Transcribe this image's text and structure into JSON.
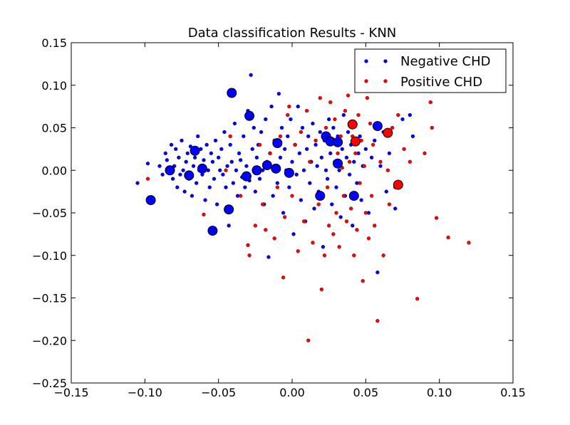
{
  "chart_data": {
    "type": "scatter",
    "title": "Data classification Results - KNN",
    "xlabel": "",
    "ylabel": "",
    "xlim": [
      -0.15,
      0.15
    ],
    "ylim": [
      -0.25,
      0.15
    ],
    "xticks": [
      -0.15,
      -0.1,
      -0.05,
      0.0,
      0.05,
      0.1,
      0.15
    ],
    "xtick_labels": [
      "−0.15",
      "−0.10",
      "−0.05",
      "0.00",
      "0.05",
      "0.10",
      "0.15"
    ],
    "yticks": [
      0.15,
      0.1,
      0.05,
      0.0,
      -0.05,
      -0.1,
      -0.15,
      -0.2,
      -0.25
    ],
    "ytick_labels": [
      "0.15",
      "0.10",
      "0.05",
      "0.00",
      "−0.05",
      "−0.10",
      "−0.15",
      "−0.20",
      "−0.25"
    ],
    "grid": false,
    "legend_position": "top-right",
    "series": [
      {
        "name": "Negative CHD",
        "color": "#0000ff",
        "marker": "small-dot",
        "points": [
          [
            -0.105,
            -0.015
          ],
          [
            -0.098,
            0.008
          ],
          [
            -0.095,
            -0.035
          ],
          [
            -0.09,
            0.005
          ],
          [
            -0.088,
            -0.005
          ],
          [
            -0.086,
            0.02
          ],
          [
            -0.085,
            0.012
          ],
          [
            -0.083,
            -0.002
          ],
          [
            -0.082,
            0.03
          ],
          [
            -0.081,
            -0.01
          ],
          [
            -0.08,
            0.005
          ],
          [
            -0.079,
            0.025
          ],
          [
            -0.078,
            -0.02
          ],
          [
            -0.077,
            0.015
          ],
          [
            -0.076,
            -0.005
          ],
          [
            -0.075,
            0.035
          ],
          [
            -0.074,
            0.0
          ],
          [
            -0.073,
            -0.025
          ],
          [
            -0.072,
            0.01
          ],
          [
            -0.071,
            0.02
          ],
          [
            -0.07,
            -0.01
          ],
          [
            -0.069,
            0.028
          ],
          [
            -0.068,
            -0.03
          ],
          [
            -0.067,
            0.005
          ],
          [
            -0.066,
            0.015
          ],
          [
            -0.065,
            -0.015
          ],
          [
            -0.064,
            0.04
          ],
          [
            -0.063,
            0.0
          ],
          [
            -0.062,
            0.025
          ],
          [
            -0.061,
            -0.005
          ],
          [
            -0.06,
            0.012
          ],
          [
            -0.059,
            -0.035
          ],
          [
            -0.058,
            0.03
          ],
          [
            -0.057,
            0.0
          ],
          [
            -0.056,
            -0.02
          ],
          [
            -0.055,
            0.02
          ],
          [
            -0.054,
            0.01
          ],
          [
            -0.053,
            -0.01
          ],
          [
            -0.052,
            0.035
          ],
          [
            -0.051,
            -0.04
          ],
          [
            -0.05,
            0.015
          ],
          [
            -0.049,
            0.0
          ],
          [
            -0.048,
            0.025
          ],
          [
            -0.047,
            -0.005
          ],
          [
            -0.046,
            0.045
          ],
          [
            -0.045,
            -0.02
          ],
          [
            -0.044,
            0.005
          ],
          [
            -0.043,
            -0.065
          ],
          [
            -0.042,
            0.03
          ],
          [
            -0.041,
            0.01
          ],
          [
            -0.04,
            -0.015
          ],
          [
            -0.039,
            0.055
          ],
          [
            -0.038,
            0.0
          ],
          [
            -0.037,
            -0.03
          ],
          [
            -0.036,
            0.02
          ],
          [
            -0.035,
            0.012
          ],
          [
            -0.034,
            -0.008
          ],
          [
            -0.033,
            0.04
          ],
          [
            -0.032,
            -0.02
          ],
          [
            -0.031,
            0.005
          ],
          [
            -0.03,
            0.07
          ],
          [
            -0.029,
            -0.012
          ],
          [
            -0.028,
            0.112
          ],
          [
            -0.027,
            0.025
          ],
          [
            -0.026,
            0.05
          ],
          [
            -0.025,
            -0.025
          ],
          [
            -0.024,
            0.015
          ],
          [
            -0.023,
            0.03
          ],
          [
            -0.022,
            -0.01
          ],
          [
            -0.021,
            0.045
          ],
          [
            -0.02,
            0.0
          ],
          [
            -0.019,
            -0.04
          ],
          [
            -0.018,
            0.06
          ],
          [
            -0.017,
            0.01
          ],
          [
            -0.016,
            -0.102
          ],
          [
            -0.015,
            0.02
          ],
          [
            -0.014,
            0.075
          ],
          [
            -0.013,
            -0.03
          ],
          [
            -0.012,
            0.035
          ],
          [
            -0.011,
            0.005
          ],
          [
            -0.01,
            -0.015
          ],
          [
            -0.009,
            0.09
          ],
          [
            -0.008,
            0.015
          ],
          [
            -0.007,
            0.05
          ],
          [
            -0.006,
            -0.05
          ],
          [
            -0.005,
            0.025
          ],
          [
            -0.004,
            0.0
          ],
          [
            -0.003,
            0.04
          ],
          [
            -0.002,
            -0.02
          ],
          [
            -0.001,
            0.06
          ],
          [
            0.0,
            0.01
          ],
          [
            0.001,
            -0.075
          ],
          [
            0.002,
            0.03
          ],
          [
            0.003,
            -0.005
          ],
          [
            0.004,
            0.075
          ],
          [
            0.005,
            0.02
          ],
          [
            0.006,
            -0.035
          ],
          [
            0.007,
            0.05
          ],
          [
            0.008,
            0.0
          ],
          [
            0.009,
            -0.06
          ],
          [
            0.01,
            0.025
          ],
          [
            0.011,
            0.04
          ],
          [
            0.012,
            -0.015
          ],
          [
            0.013,
            0.01
          ],
          [
            0.014,
            0.055
          ],
          [
            0.015,
            -0.045
          ],
          [
            0.016,
            0.03
          ],
          [
            0.017,
            0.005
          ],
          [
            0.018,
            -0.025
          ],
          [
            0.019,
            0.045
          ],
          [
            0.02,
            0.015
          ],
          [
            0.021,
            -0.09
          ],
          [
            0.022,
            0.035
          ],
          [
            0.023,
            0.0
          ],
          [
            0.024,
            -0.01
          ],
          [
            0.025,
            0.06
          ],
          [
            0.026,
            0.02
          ],
          [
            0.027,
            -0.04
          ],
          [
            0.028,
            0.05
          ],
          [
            0.029,
            0.01
          ],
          [
            0.03,
            -0.02
          ],
          [
            0.031,
            0.04
          ],
          [
            0.032,
            0.0
          ],
          [
            0.033,
            -0.055
          ],
          [
            0.034,
            0.025
          ],
          [
            0.035,
            0.065
          ],
          [
            0.036,
            -0.03
          ],
          [
            0.037,
            0.015
          ],
          [
            0.038,
            0.045
          ],
          [
            0.039,
            -0.005
          ],
          [
            0.04,
            0.03
          ],
          [
            0.041,
            -0.065
          ],
          [
            0.042,
            0.01
          ],
          [
            0.043,
            0.055
          ],
          [
            0.044,
            -0.015
          ],
          [
            0.045,
            0.02
          ],
          [
            0.046,
            0.04
          ],
          [
            0.047,
            -0.035
          ],
          [
            0.048,
            0.005
          ],
          [
            0.05,
            0.025
          ],
          [
            0.052,
            -0.05
          ],
          [
            0.054,
            0.015
          ],
          [
            0.056,
            0.035
          ],
          [
            0.058,
            -0.12
          ],
          [
            0.06,
            0.005
          ],
          [
            0.062,
            0.045
          ],
          [
            0.064,
            -0.025
          ],
          [
            0.066,
            0.02
          ],
          [
            0.07,
            -0.045
          ],
          [
            0.075,
            0.06
          ],
          [
            0.08,
            0.065
          ],
          [
            0.082,
            0.04
          ]
        ]
      },
      {
        "name": "Positive CHD",
        "color": "#ff0000",
        "marker": "small-dot",
        "points": [
          [
            -0.098,
            -0.01
          ],
          [
            -0.06,
            -0.052
          ],
          [
            -0.045,
            0.0
          ],
          [
            -0.042,
            0.04
          ],
          [
            -0.035,
            -0.03
          ],
          [
            -0.03,
            -0.088
          ],
          [
            -0.029,
            -0.1
          ],
          [
            -0.025,
            -0.065
          ],
          [
            -0.022,
            0.03
          ],
          [
            -0.02,
            -0.04
          ],
          [
            -0.018,
            -0.07
          ],
          [
            -0.015,
            0.02
          ],
          [
            -0.012,
            -0.08
          ],
          [
            -0.01,
            -0.02
          ],
          [
            -0.008,
            0.04
          ],
          [
            -0.006,
            -0.126
          ],
          [
            -0.005,
            -0.055
          ],
          [
            -0.003,
            0.065
          ],
          [
            -0.002,
            0.075
          ],
          [
            0.0,
            -0.03
          ],
          [
            0.002,
            0.03
          ],
          [
            0.004,
            -0.095
          ],
          [
            0.006,
            0.045
          ],
          [
            0.008,
            -0.06
          ],
          [
            0.01,
            0.07
          ],
          [
            0.011,
            -0.2
          ],
          [
            0.012,
            0.01
          ],
          [
            0.014,
            -0.085
          ],
          [
            0.016,
            0.035
          ],
          [
            0.018,
            -0.04
          ],
          [
            0.019,
            0.085
          ],
          [
            0.02,
            -0.14
          ],
          [
            0.022,
            -0.1
          ],
          [
            0.023,
            0.05
          ],
          [
            0.024,
            -0.02
          ],
          [
            0.025,
            -0.065
          ],
          [
            0.026,
            0.08
          ],
          [
            0.028,
            -0.075
          ],
          [
            0.029,
            0.06
          ],
          [
            0.03,
            -0.05
          ],
          [
            0.031,
            0.02
          ],
          [
            0.032,
            -0.09
          ],
          [
            0.033,
            0.04
          ],
          [
            0.034,
            0.003
          ],
          [
            0.035,
            -0.03
          ],
          [
            0.036,
            0.07
          ],
          [
            0.037,
            -0.06
          ],
          [
            0.038,
            0.088
          ],
          [
            0.039,
            0.01
          ],
          [
            0.04,
            -0.045
          ],
          [
            0.041,
            0.04
          ],
          [
            0.042,
            -0.1
          ],
          [
            0.043,
            0.02
          ],
          [
            0.044,
            -0.07
          ],
          [
            0.045,
            0.065
          ],
          [
            0.046,
            -0.015
          ],
          [
            0.047,
            0.035
          ],
          [
            0.048,
            -0.13
          ],
          [
            0.049,
            0.005
          ],
          [
            0.05,
            -0.05
          ],
          [
            0.051,
            0.085
          ],
          [
            0.052,
            -0.08
          ],
          [
            0.053,
            0.055
          ],
          [
            0.054,
            -0.03
          ],
          [
            0.055,
            0.03
          ],
          [
            0.056,
            -0.065
          ],
          [
            0.058,
            -0.177
          ],
          [
            0.06,
            0.01
          ],
          [
            0.062,
            -0.1
          ],
          [
            0.063,
            0.045
          ],
          [
            0.065,
            0.0
          ],
          [
            0.066,
            -0.04
          ],
          [
            0.068,
            0.05
          ],
          [
            0.07,
            -0.02
          ],
          [
            0.072,
            0.065
          ],
          [
            0.076,
            0.025
          ],
          [
            0.08,
            0.01
          ],
          [
            0.085,
            -0.151
          ],
          [
            0.09,
            0.02
          ],
          [
            0.094,
            0.08
          ],
          [
            0.095,
            0.05
          ],
          [
            0.098,
            -0.056
          ],
          [
            0.106,
            -0.079
          ],
          [
            0.12,
            -0.085
          ]
        ]
      }
    ],
    "highlighted_points": {
      "negative": {
        "color": "#0000ff",
        "marker": "large-circle",
        "points": [
          [
            -0.096,
            -0.035
          ],
          [
            -0.083,
            0.0
          ],
          [
            -0.07,
            -0.006
          ],
          [
            -0.066,
            0.023
          ],
          [
            -0.061,
            0.002
          ],
          [
            -0.054,
            -0.071
          ],
          [
            -0.043,
            -0.046
          ],
          [
            -0.041,
            0.091
          ],
          [
            -0.031,
            -0.007
          ],
          [
            -0.029,
            0.064
          ],
          [
            -0.024,
            0.0
          ],
          [
            -0.017,
            0.006
          ],
          [
            -0.011,
            0.002
          ],
          [
            -0.01,
            0.032
          ],
          [
            -0.002,
            -0.003
          ],
          [
            0.019,
            -0.03
          ],
          [
            0.023,
            0.04
          ],
          [
            0.026,
            0.034
          ],
          [
            0.031,
            0.033
          ],
          [
            0.031,
            0.008
          ],
          [
            0.042,
            -0.03
          ],
          [
            0.058,
            0.052
          ]
        ]
      },
      "positive": {
        "color": "#ff0000",
        "marker": "large-circle",
        "points": [
          [
            0.041,
            0.054
          ],
          [
            0.043,
            0.034
          ],
          [
            0.065,
            0.044
          ],
          [
            0.072,
            -0.017
          ]
        ]
      }
    }
  }
}
